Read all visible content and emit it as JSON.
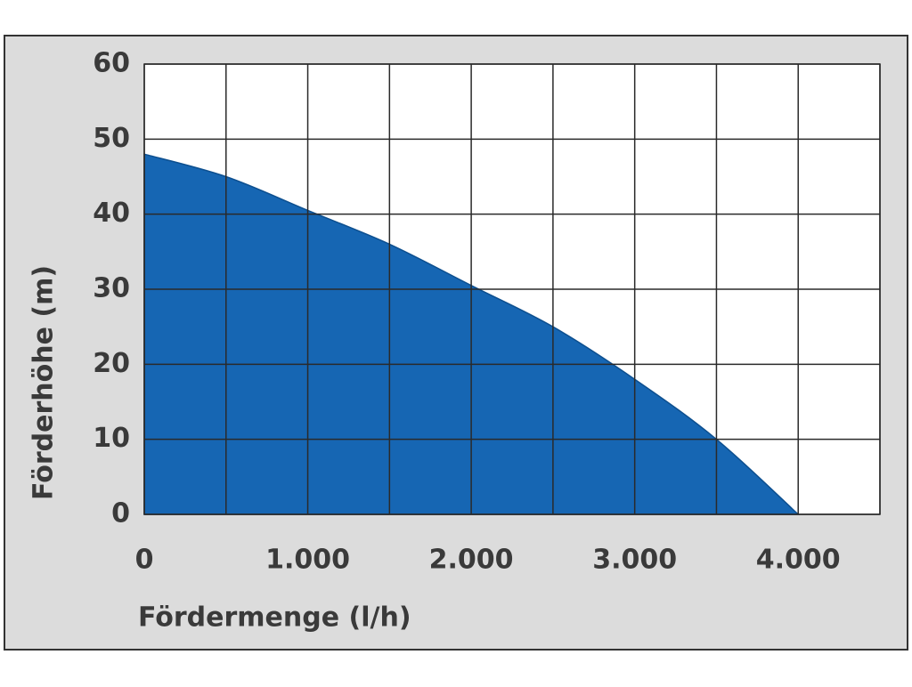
{
  "chart_data": {
    "type": "area",
    "x_label": "Fördermenge (l/h)",
    "y_label": "Förderhöhe (m)",
    "x": [
      0,
      500,
      1000,
      1500,
      2000,
      2500,
      3000,
      3500,
      4000
    ],
    "series": [
      {
        "color": "#1666b3",
        "values": [
          48,
          45,
          40.5,
          36,
          30.5,
          25,
          18,
          10,
          0
        ]
      }
    ],
    "xlim": [
      0,
      4500
    ],
    "xticks": [
      0,
      {
        "value": 1000,
        "label": "1.000"
      },
      {
        "value": 2000,
        "label": "2.000"
      },
      {
        "value": 3000,
        "label": "3.000"
      },
      {
        "value": 4000,
        "label": "4.000"
      }
    ],
    "xgrid": [
      0,
      500,
      1000,
      1500,
      2000,
      2500,
      3000,
      3500,
      4000,
      4500
    ],
    "ylim": [
      0,
      60
    ],
    "yticks": [
      0,
      10,
      20,
      30,
      40,
      50,
      60
    ],
    "grid": true
  }
}
